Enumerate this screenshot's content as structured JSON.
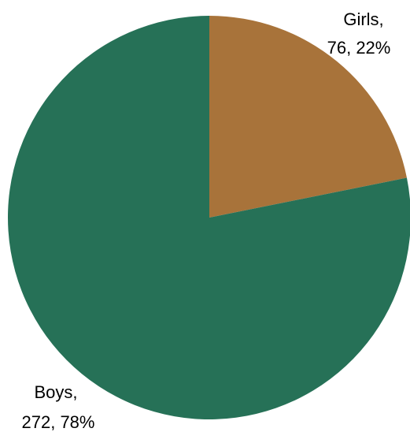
{
  "chart_data": {
    "type": "pie",
    "slices": [
      {
        "label": "Girls",
        "value": 76,
        "percent": "22%",
        "line1": "Girls,",
        "line2": "76, 22%",
        "color": "#A8733A"
      },
      {
        "label": "Boys",
        "value": 272,
        "percent": "78%",
        "line1": "Boys,",
        "line2": "272, 78%",
        "color": "#267157"
      }
    ],
    "start_angle": "12 o'clock",
    "direction": "clockwise",
    "legend": "none"
  }
}
